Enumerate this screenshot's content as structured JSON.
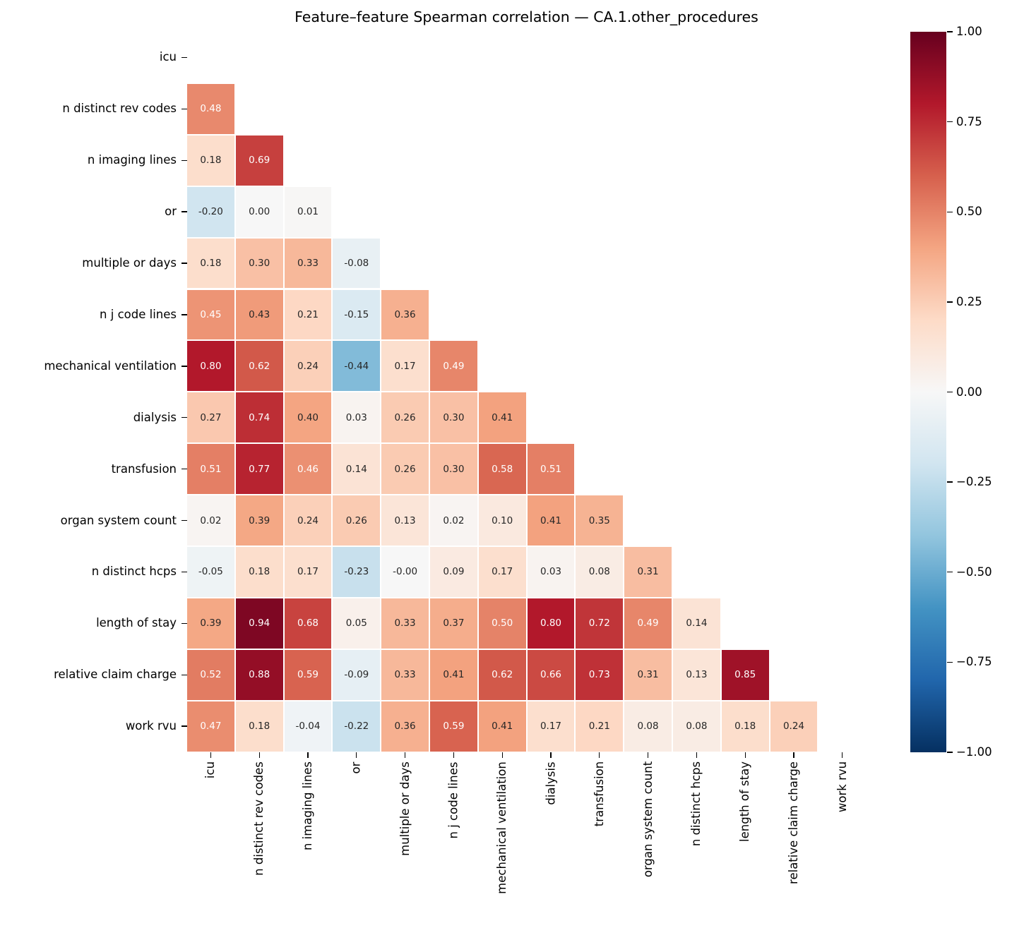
{
  "title": "Feature–feature Spearman correlation — CA.1.other_procedures",
  "chart_data": {
    "type": "heatmap",
    "subtype": "lower-triangle-correlation-matrix",
    "title": "Feature–feature Spearman correlation — CA.1.other_procedures",
    "xlabel": "",
    "ylabel": "",
    "labels": [
      "icu",
      "n distinct rev codes",
      "n imaging lines",
      "or",
      "multiple or days",
      "n j code lines",
      "mechanical ventilation",
      "dialysis",
      "transfusion",
      "organ system count",
      "n distinct hcps",
      "length of stay",
      "relative claim charge",
      "work rvu"
    ],
    "rows": [
      [],
      [
        0.48
      ],
      [
        0.18,
        0.69
      ],
      [
        -0.2,
        0.0,
        0.01
      ],
      [
        0.18,
        0.3,
        0.33,
        -0.08
      ],
      [
        0.45,
        0.43,
        0.21,
        -0.15,
        0.36
      ],
      [
        0.8,
        0.62,
        0.24,
        -0.44,
        0.17,
        0.49
      ],
      [
        0.27,
        0.74,
        0.4,
        0.03,
        0.26,
        0.3,
        0.41
      ],
      [
        0.51,
        0.77,
        0.46,
        0.14,
        0.26,
        0.3,
        0.58,
        0.51
      ],
      [
        0.02,
        0.39,
        0.24,
        0.26,
        0.13,
        0.02,
        0.1,
        0.41,
        0.35
      ],
      [
        -0.05,
        0.18,
        0.17,
        -0.23,
        -0.0,
        0.09,
        0.17,
        0.03,
        0.08,
        0.31
      ],
      [
        0.39,
        0.94,
        0.68,
        0.05,
        0.33,
        0.37,
        0.5,
        0.8,
        0.72,
        0.49,
        0.14
      ],
      [
        0.52,
        0.88,
        0.59,
        -0.09,
        0.33,
        0.41,
        0.62,
        0.66,
        0.73,
        0.31,
        0.13,
        0.85
      ],
      [
        0.47,
        0.18,
        -0.04,
        -0.22,
        0.36,
        0.59,
        0.41,
        0.17,
        0.21,
        0.08,
        0.08,
        0.18,
        0.24
      ]
    ],
    "mask": "upper triangle and diagonal hidden",
    "annotation_format": "0.00",
    "colormap": {
      "name": "RdBu_r",
      "anchors": [
        "#053061",
        "#2166ac",
        "#4393c3",
        "#92c5de",
        "#d1e5f0",
        "#f7f7f7",
        "#fddbc7",
        "#f4a582",
        "#d6604d",
        "#b2182b",
        "#67001f"
      ]
    },
    "colorbar": {
      "vmin": -1.0,
      "vmax": 1.0,
      "tick_labels": [
        "1.00",
        "0.75",
        "0.50",
        "0.25",
        "0.00",
        "−0.25",
        "−0.50",
        "−0.75",
        "−1.00"
      ],
      "position": "right"
    },
    "annotation_text_colors": {
      "light": "#ffffff",
      "dark": "#262626"
    },
    "grid": false,
    "legend": false
  }
}
